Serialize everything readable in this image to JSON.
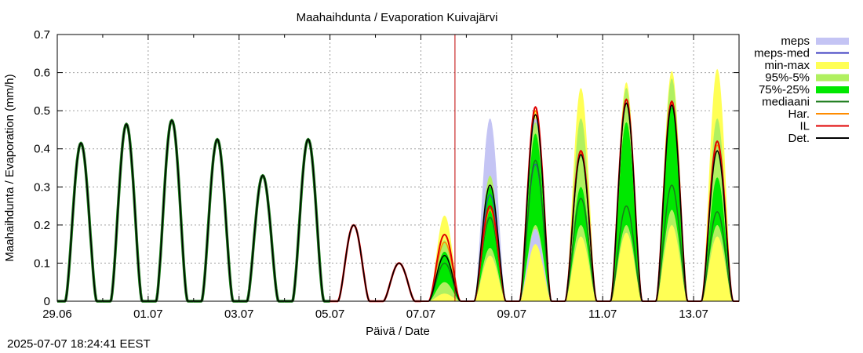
{
  "chart_data": {
    "type": "area",
    "title": "Maahaihdunta / Evaporation  Kuivajärvi",
    "xlabel": "Päivä / Date",
    "ylabel": "Maahaihdunta / Evaporation (mm/h)",
    "ylim": [
      0,
      0.7
    ],
    "yticks": [
      0,
      0.1,
      0.2,
      0.3,
      0.4,
      0.5,
      0.6,
      0.7
    ],
    "ytick_labels": [
      "0",
      "0.1",
      "0.2",
      "0.3",
      "0.4",
      "0.5",
      "0.6",
      "0.7"
    ],
    "x_range": [
      "2025-06-29 00:00",
      "2025-07-14 00:00"
    ],
    "xticks": [
      "29.06",
      "01.07",
      "03.07",
      "05.07",
      "07.07",
      "09.07",
      "11.07",
      "13.07"
    ],
    "grid": true,
    "legend_position": "right",
    "now_marker": "2025-07-07 18:00",
    "colors": {
      "meps": "#c4c4f4",
      "meps_med": "#3a3ac0",
      "min_max": "#ffff55",
      "p95_5": "#b0f060",
      "p75_25": "#00e800",
      "mediaani": "#1a7a1a",
      "har": "#ff8c00",
      "il": "#e00000",
      "det": "#000000",
      "now": "#c00000",
      "grid": "#a0a0a0"
    },
    "legend": [
      {
        "key": "meps",
        "label": "meps",
        "style": "band"
      },
      {
        "key": "meps_med",
        "label": "meps-med",
        "style": "line"
      },
      {
        "key": "min_max",
        "label": "min-max",
        "style": "band"
      },
      {
        "key": "p95_5",
        "label": "95%-5%",
        "style": "band"
      },
      {
        "key": "p75_25",
        "label": "75%-25%",
        "style": "band"
      },
      {
        "key": "mediaani",
        "label": "mediaani",
        "style": "line"
      },
      {
        "key": "har",
        "label": "Har.",
        "style": "line"
      },
      {
        "key": "il",
        "label": "IL",
        "style": "line"
      },
      {
        "key": "det",
        "label": "Det.",
        "style": "line"
      }
    ],
    "observed_days": [
      {
        "date": "2025-06-29",
        "peak": 0.415
      },
      {
        "date": "2025-06-30",
        "peak": 0.465
      },
      {
        "date": "2025-07-01",
        "peak": 0.475
      },
      {
        "date": "2025-07-02",
        "peak": 0.425
      },
      {
        "date": "2025-07-03",
        "peak": 0.33
      },
      {
        "date": "2025-07-04",
        "peak": 0.425
      }
    ],
    "det_days": [
      {
        "date": "2025-07-05",
        "peak": 0.2
      },
      {
        "date": "2025-07-06",
        "peak": 0.1
      },
      {
        "date": "2025-07-07",
        "peak": 0.12
      },
      {
        "date": "2025-07-08",
        "peak": 0.305
      },
      {
        "date": "2025-07-09",
        "peak": 0.49
      },
      {
        "date": "2025-07-10",
        "peak": 0.385
      },
      {
        "date": "2025-07-11",
        "peak": 0.52
      },
      {
        "date": "2025-07-12",
        "peak": 0.515
      },
      {
        "date": "2025-07-13",
        "peak": 0.395
      }
    ],
    "forecast_days": [
      {
        "date": "2025-07-07",
        "minmax": [
          0,
          0.225
        ],
        "p95_5": [
          0.02,
          0.16
        ],
        "p75_25": [
          0.05,
          0.13
        ],
        "mediaani": 0.1,
        "il": 0.175,
        "har": 0.155,
        "meps": [
          0.06,
          0.14
        ],
        "meps_med": 0.1
      },
      {
        "date": "2025-07-08",
        "minmax": [
          0,
          0.34
        ],
        "p95_5": [
          0.12,
          0.33
        ],
        "p75_25": [
          0.14,
          0.3
        ],
        "mediaani": 0.22,
        "il": 0.25,
        "har": 0.24,
        "meps": [
          0.12,
          0.48
        ],
        "meps_med": 0.28
      },
      {
        "date": "2025-07-09",
        "minmax": [
          0.15,
          0.5
        ],
        "p95_5": [
          0.19,
          0.47
        ],
        "p75_25": [
          0.2,
          0.44
        ],
        "mediaani": 0.37,
        "il": 0.51,
        "har": 0.5,
        "meps": [
          0.15,
          0.48
        ],
        "meps_med": 0.36
      },
      {
        "date": "2025-07-10",
        "minmax": [
          0.15,
          0.56
        ],
        "p95_5": [
          0.17,
          0.48
        ],
        "p75_25": [
          0.2,
          0.3
        ],
        "mediaani": 0.27,
        "il": 0.395,
        "har": 0.39
      },
      {
        "date": "2025-07-11",
        "minmax": [
          0.15,
          0.575
        ],
        "p95_5": [
          0.18,
          0.56
        ],
        "p75_25": [
          0.2,
          0.47
        ],
        "mediaani": 0.25,
        "il": 0.53,
        "har": 0.52
      },
      {
        "date": "2025-07-12",
        "minmax": [
          0.14,
          0.605
        ],
        "p95_5": [
          0.2,
          0.585
        ],
        "p75_25": [
          0.24,
          0.51
        ],
        "mediaani": 0.305,
        "il": 0.525,
        "har": 0.52
      },
      {
        "date": "2025-07-13",
        "minmax": [
          0.15,
          0.61
        ],
        "p95_5": [
          0.17,
          0.48
        ],
        "p75_25": [
          0.2,
          0.325
        ],
        "mediaani": 0.235,
        "il": 0.42,
        "har": 0.41
      }
    ]
  },
  "footer": {
    "timestamp": "2025-07-07 18:24:41 EEST"
  }
}
